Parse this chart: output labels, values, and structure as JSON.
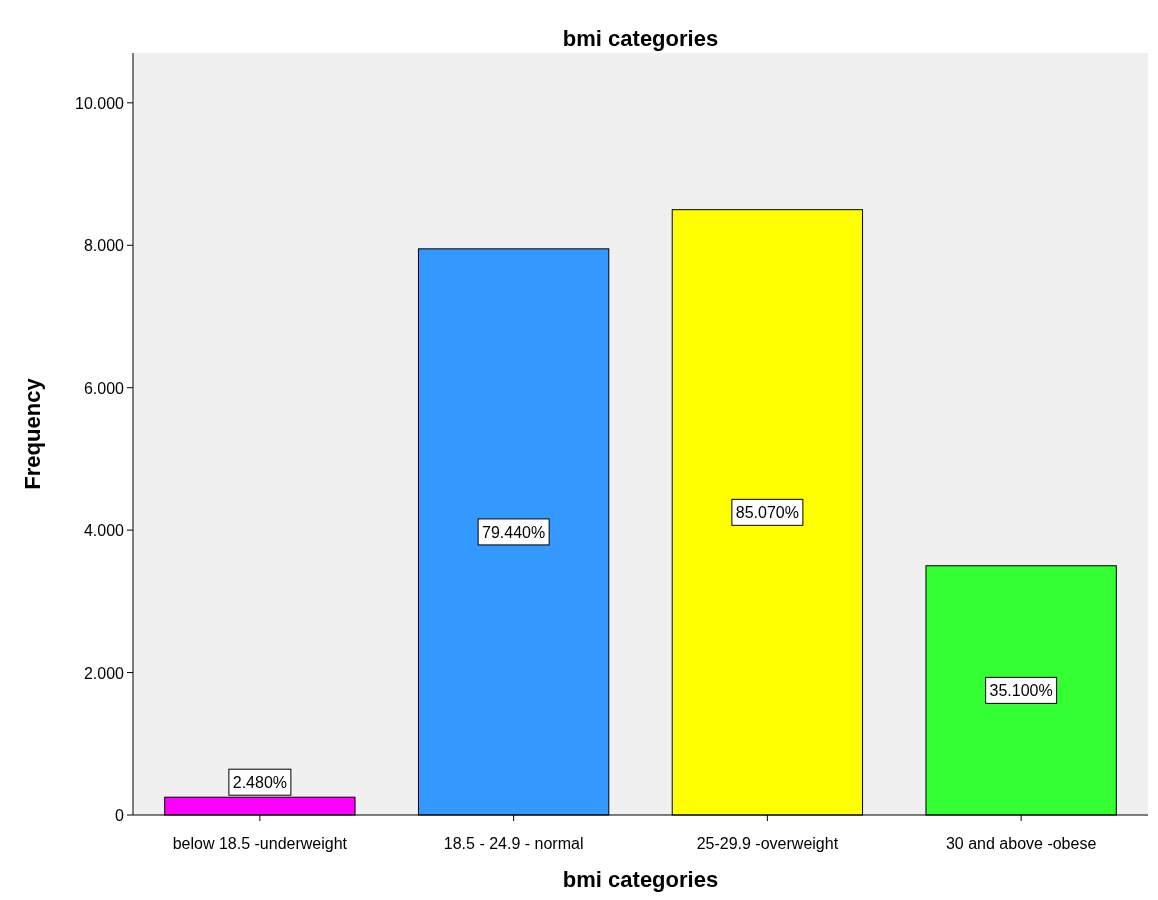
{
  "chart_data": {
    "type": "bar",
    "title": "bmi categories",
    "xlabel": "bmi categories",
    "ylabel": "Frequency",
    "categories": [
      "below 18.5 -underweight",
      "18.5 - 24.9 - normal",
      "25-29.9 -overweight",
      "30 and above -obese"
    ],
    "values": [
      0.25,
      7.95,
      8.5,
      3.5
    ],
    "colors": [
      "#ff00ff",
      "#3399ff",
      "#ffff00",
      "#33ff33"
    ],
    "annotations": [
      "2.480%",
      "79.440%",
      "85.070%",
      "35.100%"
    ],
    "ylim": [
      0,
      10.7
    ],
    "yticks": [
      0,
      {
        "value": 2,
        "label": "2.000"
      },
      {
        "value": 4,
        "label": "4.000"
      },
      {
        "value": 6,
        "label": "6.000"
      },
      {
        "value": 8,
        "label": "8.000"
      },
      {
        "value": 10,
        "label": "10.000"
      }
    ],
    "grid": false
  }
}
